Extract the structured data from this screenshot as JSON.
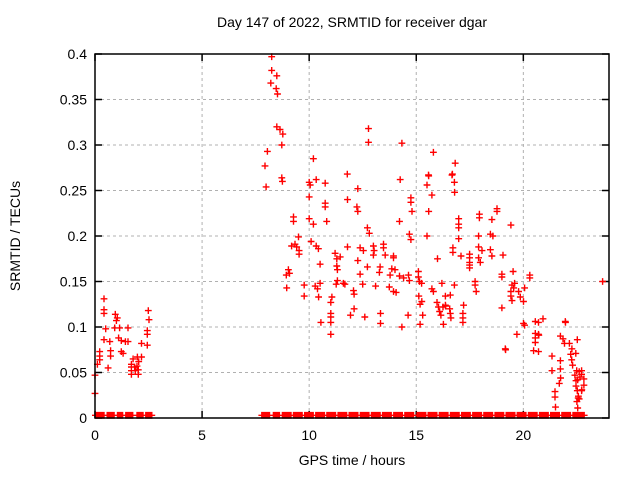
{
  "window_title": "Day 147 of 2022, SRMTID for receiver dgar",
  "chart_data": {
    "type": "scatter",
    "title": "Day 147 of 2022, SRMTID for receiver dgar",
    "xlabel": "GPS time / hours",
    "ylabel": "SRMTID / TECUs",
    "xlim": [
      0,
      24
    ],
    "ylim": [
      0,
      0.4
    ],
    "xtick_values": [
      0,
      5,
      10,
      15,
      20
    ],
    "xtick_labels": [
      "0",
      "5",
      "10",
      "15",
      "20"
    ],
    "ytick_values": [
      0,
      0.05,
      0.1,
      0.15,
      0.2,
      0.25,
      0.3,
      0.35,
      0.4
    ],
    "ytick_labels": [
      "0",
      "0.05",
      "0.1",
      "0.15",
      "0.2",
      "0.25",
      "0.3",
      "0.35",
      "0.4"
    ],
    "grid": true,
    "legend": "none",
    "marker": "plus",
    "colors": {
      "marker": "#ff0000",
      "grid": "#b0b0b0",
      "frame": "#000000",
      "background": "#ffffff"
    },
    "points": [
      [
        0.0,
        0.047
      ],
      [
        0.0,
        0.027
      ],
      [
        0.11,
        0.059
      ],
      [
        0.22,
        0.073
      ],
      [
        0.22,
        0.068
      ],
      [
        0.22,
        0.064
      ],
      [
        0.42,
        0.131
      ],
      [
        0.42,
        0.119
      ],
      [
        0.42,
        0.115
      ],
      [
        0.42,
        0.086
      ],
      [
        0.5,
        0.098
      ],
      [
        0.61,
        0.055
      ],
      [
        0.69,
        0.084
      ],
      [
        0.73,
        0.074
      ],
      [
        0.73,
        0.068
      ],
      [
        0.92,
        0.099
      ],
      [
        0.95,
        0.114
      ],
      [
        1.0,
        0.107
      ],
      [
        1.04,
        0.11
      ],
      [
        1.1,
        0.088
      ],
      [
        1.15,
        0.099
      ],
      [
        1.23,
        0.085
      ],
      [
        1.23,
        0.073
      ],
      [
        1.31,
        0.071
      ],
      [
        1.42,
        0.084
      ],
      [
        1.54,
        0.099
      ],
      [
        1.54,
        0.084
      ],
      [
        1.7,
        0.059
      ],
      [
        1.7,
        0.056
      ],
      [
        1.7,
        0.052
      ],
      [
        1.7,
        0.048
      ],
      [
        1.78,
        0.065
      ],
      [
        1.85,
        0.056
      ],
      [
        1.88,
        0.052
      ],
      [
        1.96,
        0.057
      ],
      [
        1.98,
        0.067
      ],
      [
        2.02,
        0.053
      ],
      [
        2.02,
        0.048
      ],
      [
        2.04,
        0.062
      ],
      [
        2.17,
        0.082
      ],
      [
        2.17,
        0.067
      ],
      [
        2.44,
        0.096
      ],
      [
        2.44,
        0.092
      ],
      [
        2.44,
        0.08
      ],
      [
        2.49,
        0.118
      ],
      [
        2.52,
        0.108
      ],
      [
        8.25,
        0.397
      ],
      [
        8.25,
        0.382
      ],
      [
        8.49,
        0.376
      ],
      [
        8.21,
        0.368
      ],
      [
        8.46,
        0.362
      ],
      [
        8.52,
        0.356
      ],
      [
        8.49,
        0.32
      ],
      [
        8.64,
        0.317
      ],
      [
        8.77,
        0.312
      ],
      [
        8.72,
        0.3
      ],
      [
        8.05,
        0.293
      ],
      [
        7.94,
        0.277
      ],
      [
        8.72,
        0.264
      ],
      [
        8.75,
        0.26
      ],
      [
        7.99,
        0.254
      ],
      [
        10.2,
        0.285
      ],
      [
        12.77,
        0.318
      ],
      [
        12.77,
        0.303
      ],
      [
        11.78,
        0.268
      ],
      [
        14.33,
        0.302
      ],
      [
        15.8,
        0.292
      ],
      [
        16.82,
        0.28
      ],
      [
        15.57,
        0.267
      ],
      [
        16.69,
        0.268
      ],
      [
        10.0,
        0.259
      ],
      [
        10.05,
        0.256
      ],
      [
        10.33,
        0.262
      ],
      [
        10.75,
        0.258
      ],
      [
        10.0,
        0.243
      ],
      [
        12.27,
        0.252
      ],
      [
        11.79,
        0.24
      ],
      [
        10.75,
        0.236
      ],
      [
        10.75,
        0.232
      ],
      [
        12.23,
        0.232
      ],
      [
        12.27,
        0.227
      ],
      [
        9.27,
        0.221
      ],
      [
        9.27,
        0.216
      ],
      [
        10.0,
        0.219
      ],
      [
        10.2,
        0.213
      ],
      [
        10.82,
        0.216
      ],
      [
        9.5,
        0.199
      ],
      [
        9.34,
        0.191
      ],
      [
        9.18,
        0.189
      ],
      [
        9.42,
        0.188
      ],
      [
        9.53,
        0.184
      ],
      [
        9.53,
        0.18
      ],
      [
        10.09,
        0.194
      ],
      [
        10.33,
        0.189
      ],
      [
        10.43,
        0.186
      ],
      [
        11.79,
        0.188
      ],
      [
        11.21,
        0.181
      ],
      [
        11.45,
        0.177
      ],
      [
        11.29,
        0.175
      ],
      [
        10.51,
        0.169
      ],
      [
        11.29,
        0.167
      ],
      [
        11.32,
        0.163
      ],
      [
        12.27,
        0.173
      ],
      [
        9.03,
        0.163
      ],
      [
        9.08,
        0.159
      ],
      [
        8.93,
        0.157
      ],
      [
        10.51,
        0.148
      ],
      [
        11.32,
        0.151
      ],
      [
        11.6,
        0.148
      ],
      [
        14.25,
        0.262
      ],
      [
        15.58,
        0.266
      ],
      [
        15.5,
        0.256
      ],
      [
        15.73,
        0.245
      ],
      [
        16.67,
        0.267
      ],
      [
        16.78,
        0.259
      ],
      [
        16.79,
        0.248
      ],
      [
        14.75,
        0.242
      ],
      [
        14.75,
        0.237
      ],
      [
        14.8,
        0.227
      ],
      [
        15.58,
        0.227
      ],
      [
        14.22,
        0.216
      ],
      [
        17.95,
        0.224
      ],
      [
        17.95,
        0.22
      ],
      [
        16.98,
        0.219
      ],
      [
        16.98,
        0.213
      ],
      [
        16.98,
        0.209
      ],
      [
        12.72,
        0.209
      ],
      [
        12.81,
        0.203
      ],
      [
        14.68,
        0.202
      ],
      [
        14.75,
        0.196
      ],
      [
        15.5,
        0.2
      ],
      [
        17.91,
        0.2
      ],
      [
        16.98,
        0.197
      ],
      [
        12.38,
        0.187
      ],
      [
        12.53,
        0.184
      ],
      [
        13.0,
        0.189
      ],
      [
        13.03,
        0.184
      ],
      [
        13.47,
        0.191
      ],
      [
        13.47,
        0.187
      ],
      [
        13.55,
        0.179
      ],
      [
        13.0,
        0.179
      ],
      [
        13.94,
        0.178
      ],
      [
        13.94,
        0.176
      ],
      [
        16.71,
        0.187
      ],
      [
        16.71,
        0.182
      ],
      [
        17.09,
        0.178
      ],
      [
        17.91,
        0.188
      ],
      [
        18.07,
        0.184
      ],
      [
        18.46,
        0.185
      ],
      [
        15.99,
        0.175
      ],
      [
        17.49,
        0.18
      ],
      [
        17.49,
        0.176
      ],
      [
        17.49,
        0.171
      ],
      [
        17.49,
        0.168
      ],
      [
        17.49,
        0.165
      ],
      [
        17.91,
        0.176
      ],
      [
        17.99,
        0.171
      ],
      [
        12.72,
        0.166
      ],
      [
        13.31,
        0.166
      ],
      [
        13.86,
        0.164
      ],
      [
        14.01,
        0.163
      ],
      [
        12.38,
        0.158
      ],
      [
        13.28,
        0.16
      ],
      [
        13.78,
        0.157
      ],
      [
        14.22,
        0.156
      ],
      [
        14.41,
        0.154
      ],
      [
        14.64,
        0.157
      ],
      [
        14.68,
        0.151
      ],
      [
        15.1,
        0.161
      ],
      [
        15.1,
        0.155
      ],
      [
        15.15,
        0.15
      ],
      [
        16.2,
        0.148
      ],
      [
        16.78,
        0.146
      ],
      [
        18.77,
        0.23
      ],
      [
        18.77,
        0.227
      ],
      [
        18.53,
        0.218
      ],
      [
        19.42,
        0.212
      ],
      [
        18.58,
        0.2
      ],
      [
        18.46,
        0.202
      ],
      [
        18.53,
        0.178
      ],
      [
        19.05,
        0.179
      ],
      [
        19.0,
        0.158
      ],
      [
        19.0,
        0.155
      ],
      [
        19.52,
        0.161
      ],
      [
        20.3,
        0.157
      ],
      [
        20.3,
        0.154
      ],
      [
        19.47,
        0.146
      ],
      [
        8.95,
        0.143
      ],
      [
        9.77,
        0.146
      ],
      [
        10.28,
        0.145
      ],
      [
        10.39,
        0.142
      ],
      [
        9.77,
        0.134
      ],
      [
        10.44,
        0.133
      ],
      [
        11.26,
        0.147
      ],
      [
        11.67,
        0.147
      ],
      [
        12.07,
        0.14
      ],
      [
        12.1,
        0.136
      ],
      [
        12.5,
        0.147
      ],
      [
        13.1,
        0.145
      ],
      [
        13.74,
        0.144
      ],
      [
        13.94,
        0.139
      ],
      [
        14.06,
        0.138
      ],
      [
        11.06,
        0.133
      ],
      [
        11.01,
        0.127
      ],
      [
        11.01,
        0.115
      ],
      [
        11.01,
        0.111
      ],
      [
        11.01,
        0.105
      ],
      [
        11.01,
        0.092
      ],
      [
        11.93,
        0.113
      ],
      [
        12.1,
        0.12
      ],
      [
        12.6,
        0.111
      ],
      [
        13.33,
        0.115
      ],
      [
        13.33,
        0.104
      ],
      [
        10.55,
        0.105
      ],
      [
        14.62,
        0.113
      ],
      [
        14.33,
        0.1
      ],
      [
        15.12,
        0.134
      ],
      [
        15.25,
        0.148
      ],
      [
        15.73,
        0.142
      ],
      [
        15.8,
        0.139
      ],
      [
        16.36,
        0.134
      ],
      [
        16.59,
        0.135
      ],
      [
        15.26,
        0.128
      ],
      [
        15.18,
        0.125
      ],
      [
        15.3,
        0.113
      ],
      [
        15.18,
        0.103
      ],
      [
        15.97,
        0.127
      ],
      [
        16.04,
        0.122
      ],
      [
        16.09,
        0.117
      ],
      [
        16.15,
        0.113
      ],
      [
        16.25,
        0.122
      ],
      [
        16.36,
        0.124
      ],
      [
        16.37,
        0.123
      ],
      [
        16.56,
        0.12
      ],
      [
        16.59,
        0.115
      ],
      [
        16.62,
        0.11
      ],
      [
        16.27,
        0.103
      ],
      [
        17.21,
        0.124
      ],
      [
        17.18,
        0.115
      ],
      [
        17.18,
        0.11
      ],
      [
        17.18,
        0.105
      ],
      [
        17.75,
        0.15
      ],
      [
        17.75,
        0.146
      ],
      [
        17.8,
        0.139
      ],
      [
        19.0,
        0.121
      ],
      [
        19.42,
        0.139
      ],
      [
        19.42,
        0.134
      ],
      [
        19.47,
        0.129
      ],
      [
        19.55,
        0.143
      ],
      [
        19.59,
        0.148
      ],
      [
        19.78,
        0.139
      ],
      [
        19.86,
        0.133
      ],
      [
        20.01,
        0.128
      ],
      [
        20.06,
        0.143
      ],
      [
        20.01,
        0.104
      ],
      [
        20.06,
        0.102
      ],
      [
        20.56,
        0.106
      ],
      [
        20.71,
        0.105
      ],
      [
        20.92,
        0.109
      ],
      [
        20.56,
        0.093
      ],
      [
        20.56,
        0.088
      ],
      [
        20.56,
        0.083
      ],
      [
        20.71,
        0.092
      ],
      [
        20.72,
        0.091
      ],
      [
        19.7,
        0.092
      ],
      [
        19.16,
        0.076
      ],
      [
        19.17,
        0.075
      ],
      [
        20.48,
        0.074
      ],
      [
        20.71,
        0.073
      ],
      [
        21.96,
        0.106
      ],
      [
        21.97,
        0.105
      ],
      [
        21.73,
        0.09
      ],
      [
        21.85,
        0.087
      ],
      [
        21.92,
        0.082
      ],
      [
        22.27,
        0.076
      ],
      [
        23.7,
        0.15
      ],
      [
        21.34,
        0.068
      ],
      [
        21.73,
        0.063
      ],
      [
        21.34,
        0.052
      ],
      [
        21.73,
        0.054
      ],
      [
        21.74,
        0.044
      ],
      [
        21.68,
        0.038
      ],
      [
        21.48,
        0.029
      ],
      [
        21.48,
        0.023
      ],
      [
        22.15,
        0.082
      ],
      [
        22.21,
        0.07
      ],
      [
        22.26,
        0.064
      ],
      [
        22.3,
        0.058
      ],
      [
        22.49,
        0.052
      ],
      [
        22.41,
        0.047
      ],
      [
        22.61,
        0.051
      ],
      [
        22.72,
        0.052
      ],
      [
        22.64,
        0.045
      ],
      [
        22.46,
        0.041
      ],
      [
        22.46,
        0.035
      ],
      [
        22.52,
        0.03
      ],
      [
        22.57,
        0.024
      ],
      [
        22.61,
        0.021
      ],
      [
        22.72,
        0.03
      ],
      [
        22.73,
        0.031
      ],
      [
        22.83,
        0.043
      ],
      [
        22.83,
        0.036
      ],
      [
        22.52,
        0.086
      ],
      [
        22.45,
        0.071
      ],
      [
        22.72,
        0.048
      ],
      [
        22.54,
        0.042
      ],
      [
        22.56,
        0.022
      ],
      [
        22.5,
        0.018
      ],
      [
        21.5,
        0.012
      ],
      [
        22.54,
        0.011
      ]
    ],
    "zero_row_y": 0.003,
    "zero_row_segments": [
      [
        0.02,
        0.44
      ],
      [
        0.57,
        0.91
      ],
      [
        1.05,
        1.3
      ],
      [
        1.44,
        1.77
      ],
      [
        1.96,
        2.24
      ],
      [
        2.37,
        2.66
      ],
      [
        7.79,
        8.17
      ],
      [
        8.33,
        8.64
      ],
      [
        8.75,
        9.17
      ],
      [
        9.27,
        9.69
      ],
      [
        9.79,
        10.21
      ],
      [
        10.31,
        10.73
      ],
      [
        10.83,
        11.25
      ],
      [
        11.35,
        11.77
      ],
      [
        11.87,
        12.29
      ],
      [
        12.39,
        12.81
      ],
      [
        12.91,
        13.33
      ],
      [
        13.43,
        13.85
      ],
      [
        13.95,
        14.37
      ],
      [
        14.47,
        14.89
      ],
      [
        15.04,
        15.46
      ],
      [
        15.56,
        15.98
      ],
      [
        16.08,
        16.5
      ],
      [
        16.6,
        17.02
      ],
      [
        17.12,
        17.54
      ],
      [
        17.64,
        18.06
      ],
      [
        18.16,
        18.58
      ],
      [
        18.68,
        19.1
      ],
      [
        19.2,
        19.62
      ],
      [
        19.72,
        20.14
      ],
      [
        20.24,
        20.66
      ],
      [
        20.76,
        21.18
      ],
      [
        21.28,
        21.7
      ],
      [
        21.8,
        22.22
      ],
      [
        22.32,
        22.85
      ]
    ]
  }
}
